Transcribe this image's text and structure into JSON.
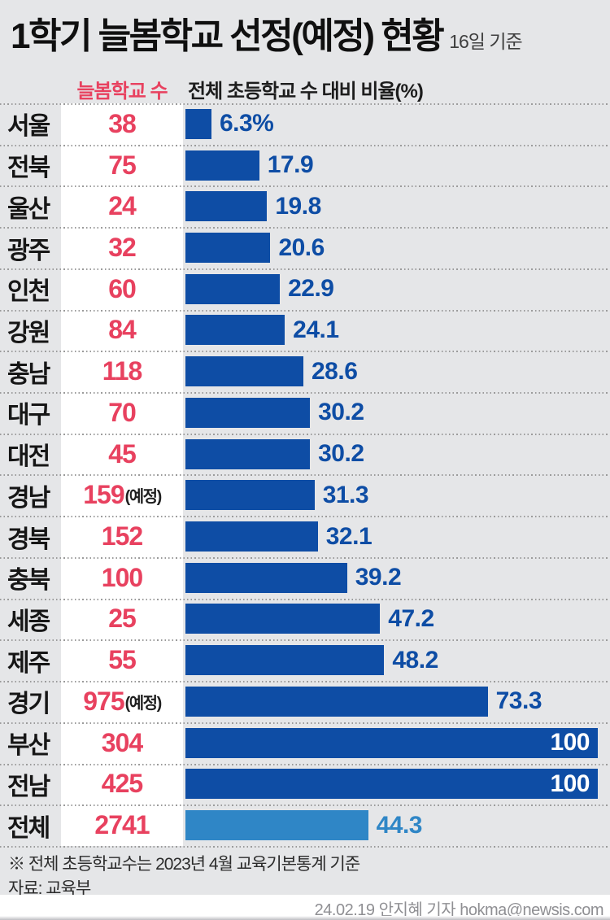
{
  "header": {
    "title": "1학기 늘봄학교 선정(예정) 현황",
    "date_note": "16일 기준",
    "col_count": "늘봄학교 수",
    "col_ratio": "전체 초등학교 수 대비 비율(%)"
  },
  "footer": {
    "footnote": "※ 전체 초등학교수는 2023년 4월 교육기본통계 기준",
    "source": "자료: 교육부",
    "byline": "24.02.19 안지혜 기자 hokma@newsis.com"
  },
  "colors": {
    "background": "#e5e6e8",
    "bar_blue": "#0e4da5",
    "bar_light_blue": "#2f86c6",
    "accent_pink": "#e8415f",
    "pct_text_blue": "#0e4da5",
    "inside_label_white": "#ffffff",
    "byline_gray": "#8f8f93"
  },
  "chart_data": {
    "type": "bar",
    "orientation": "horizontal",
    "title": "1학기 늘봄학교 선정(예정) 현황",
    "categories": [
      "서울",
      "전북",
      "울산",
      "광주",
      "인천",
      "강원",
      "충남",
      "대구",
      "대전",
      "경남",
      "경북",
      "충북",
      "세종",
      "제주",
      "경기",
      "부산",
      "전남",
      "전체"
    ],
    "series": [
      {
        "name": "늘봄학교 수",
        "values": [
          38,
          75,
          24,
          32,
          60,
          84,
          118,
          70,
          45,
          159,
          152,
          100,
          25,
          55,
          975,
          304,
          425,
          2741
        ]
      },
      {
        "name": "전체 초등학교 수 대비 비율(%)",
        "values": [
          6.3,
          17.9,
          19.8,
          20.6,
          22.9,
          24.1,
          28.6,
          30.2,
          30.2,
          31.3,
          32.1,
          39.2,
          47.2,
          48.2,
          73.3,
          100,
          100,
          44.3
        ]
      }
    ],
    "xlim": [
      0,
      100
    ],
    "legend_position": "top",
    "grid": false,
    "rows": [
      {
        "region": "서울",
        "count": "38",
        "suffix": "",
        "pct": 6.3,
        "pct_label": "6.3%",
        "inside": false,
        "total": false
      },
      {
        "region": "전북",
        "count": "75",
        "suffix": "",
        "pct": 17.9,
        "pct_label": "17.9",
        "inside": false,
        "total": false
      },
      {
        "region": "울산",
        "count": "24",
        "suffix": "",
        "pct": 19.8,
        "pct_label": "19.8",
        "inside": false,
        "total": false
      },
      {
        "region": "광주",
        "count": "32",
        "suffix": "",
        "pct": 20.6,
        "pct_label": "20.6",
        "inside": false,
        "total": false
      },
      {
        "region": "인천",
        "count": "60",
        "suffix": "",
        "pct": 22.9,
        "pct_label": "22.9",
        "inside": false,
        "total": false
      },
      {
        "region": "강원",
        "count": "84",
        "suffix": "",
        "pct": 24.1,
        "pct_label": "24.1",
        "inside": false,
        "total": false
      },
      {
        "region": "충남",
        "count": "118",
        "suffix": "",
        "pct": 28.6,
        "pct_label": "28.6",
        "inside": false,
        "total": false
      },
      {
        "region": "대구",
        "count": "70",
        "suffix": "",
        "pct": 30.2,
        "pct_label": "30.2",
        "inside": false,
        "total": false
      },
      {
        "region": "대전",
        "count": "45",
        "suffix": "",
        "pct": 30.2,
        "pct_label": "30.2",
        "inside": false,
        "total": false
      },
      {
        "region": "경남",
        "count": "159",
        "suffix": "(예정)",
        "pct": 31.3,
        "pct_label": "31.3",
        "inside": false,
        "total": false
      },
      {
        "region": "경북",
        "count": "152",
        "suffix": "",
        "pct": 32.1,
        "pct_label": "32.1",
        "inside": false,
        "total": false
      },
      {
        "region": "충북",
        "count": "100",
        "suffix": "",
        "pct": 39.2,
        "pct_label": "39.2",
        "inside": false,
        "total": false
      },
      {
        "region": "세종",
        "count": "25",
        "suffix": "",
        "pct": 47.2,
        "pct_label": "47.2",
        "inside": false,
        "total": false
      },
      {
        "region": "제주",
        "count": "55",
        "suffix": "",
        "pct": 48.2,
        "pct_label": "48.2",
        "inside": false,
        "total": false
      },
      {
        "region": "경기",
        "count": "975",
        "suffix": "(예정)",
        "pct": 73.3,
        "pct_label": "73.3",
        "inside": false,
        "total": false
      },
      {
        "region": "부산",
        "count": "304",
        "suffix": "",
        "pct": 100,
        "pct_label": "100",
        "inside": true,
        "total": false
      },
      {
        "region": "전남",
        "count": "425",
        "suffix": "",
        "pct": 100,
        "pct_label": "100",
        "inside": true,
        "total": false
      },
      {
        "region": "전체",
        "count": "2741",
        "suffix": "",
        "pct": 44.3,
        "pct_label": "44.3",
        "inside": false,
        "total": true
      }
    ]
  }
}
